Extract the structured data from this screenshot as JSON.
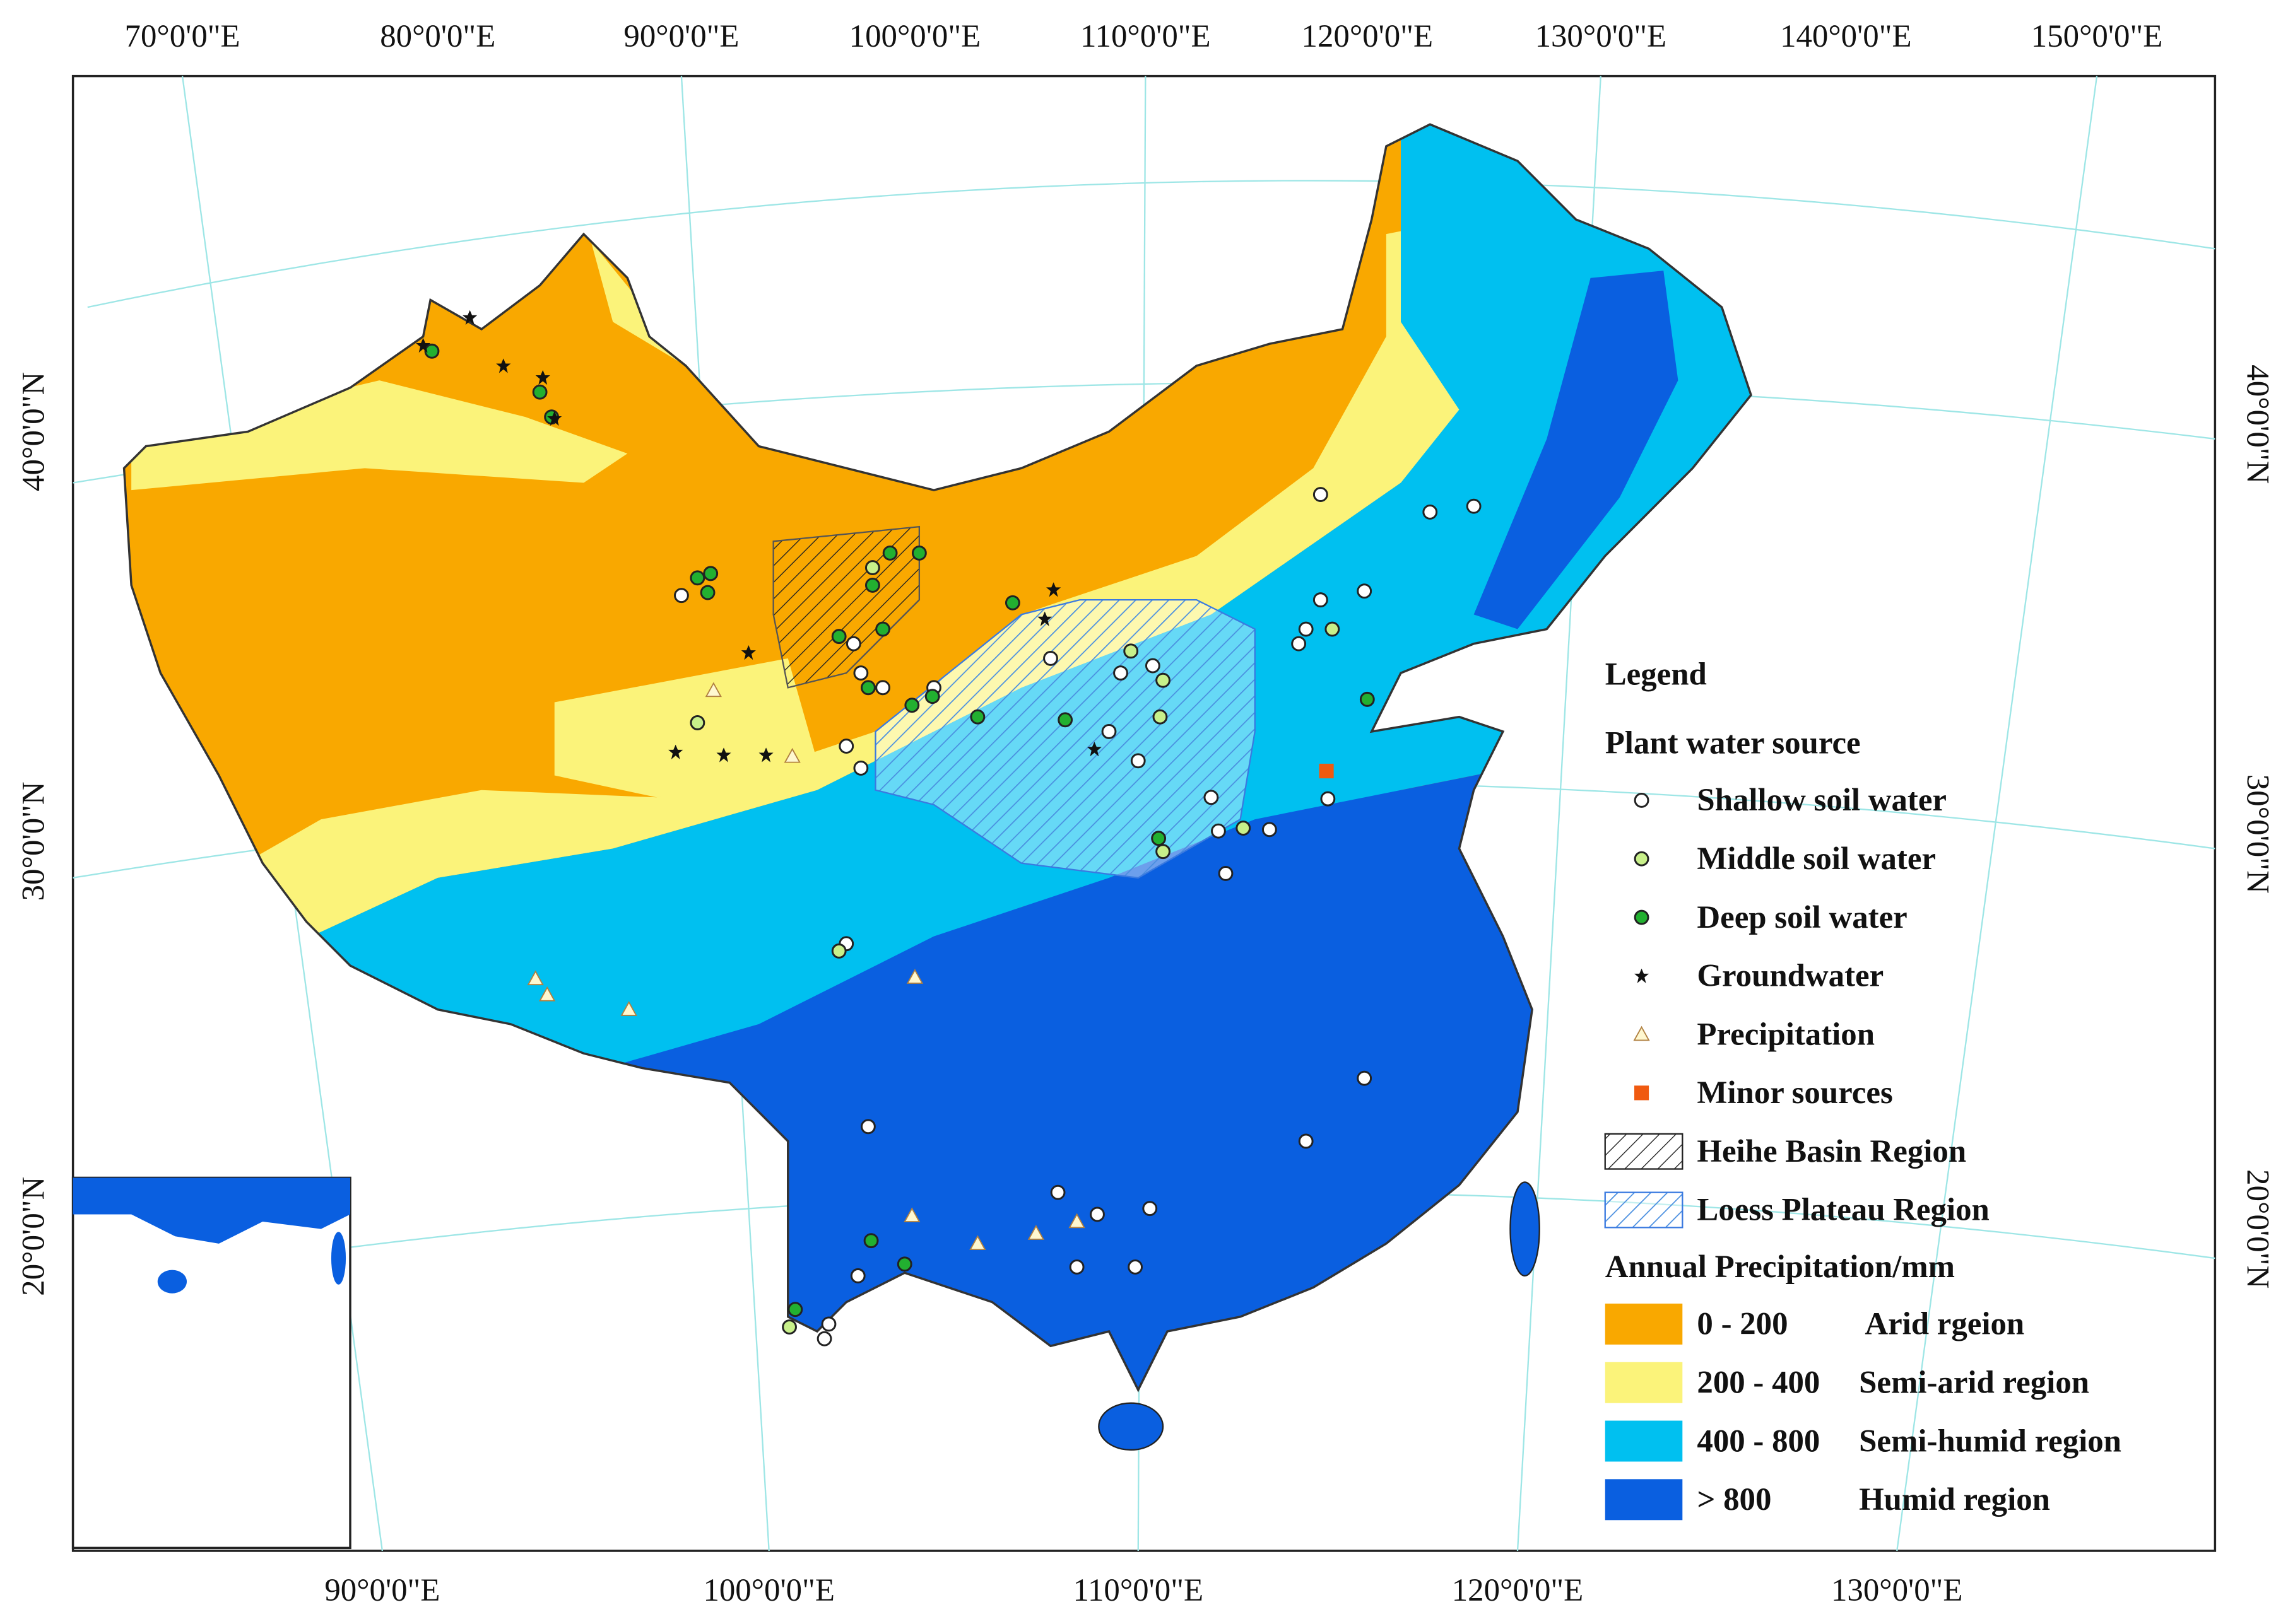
{
  "axes": {
    "top": [
      "70°0'0\"E",
      "80°0'0\"E",
      "90°0'0\"E",
      "100°0'0\"E",
      "110°0'0\"E",
      "120°0'0\"E",
      "130°0'0\"E",
      "140°0'0\"E",
      "150°0'0\"E"
    ],
    "bottom": [
      "90°0'0\"E",
      "100°0'0\"E",
      "110°0'0\"E",
      "120°0'0\"E",
      "130°0'0\"E"
    ],
    "left": [
      "40°0'0\"N",
      "30°0'0\"N",
      "20°0'0\"N"
    ],
    "right": [
      "40°0'0\"N",
      "30°0'0\"N",
      "20°0'0\"N"
    ]
  },
  "legend": {
    "title": "Legend",
    "source_title": "Plant water source",
    "sources": [
      "Shallow soil water",
      "Middle soil water",
      "Deep soil water",
      "Groundwater",
      "Precipitation",
      "Minor sources"
    ],
    "regions": [
      "Heihe Basin Region",
      "Loess Plateau Region"
    ],
    "precip_title": "Annual Precipitation/mm",
    "precip": [
      {
        "range": "0 - 200",
        "label": "Arid rgeion"
      },
      {
        "range": "200 - 400",
        "label": "Semi-arid region"
      },
      {
        "range": "400 - 800",
        "label": "Semi-humid region"
      },
      {
        "range": "> 800",
        "label": "Humid region"
      }
    ]
  }
}
